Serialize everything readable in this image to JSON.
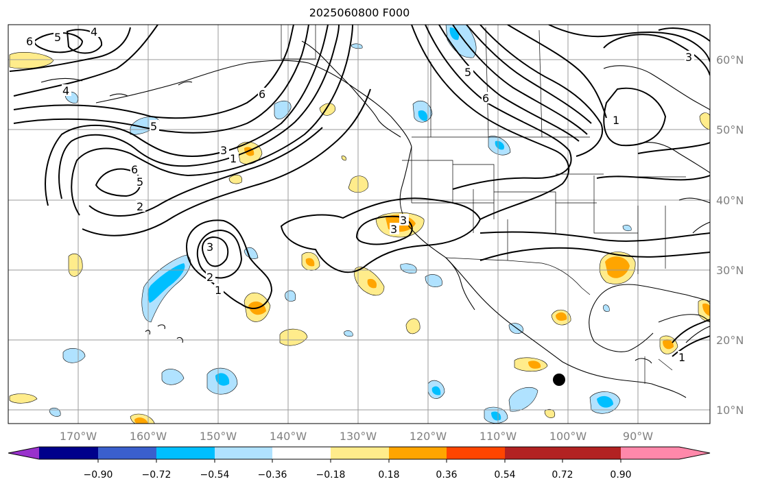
{
  "title": "2025060800 F000",
  "longitude_labels": [
    "170°W",
    "160°W",
    "150°W",
    "140°W",
    "130°W",
    "120°W",
    "110°W",
    "100°W",
    "90°W"
  ],
  "latitude_labels": [
    "60°N",
    "50°N",
    "40°N",
    "30°N",
    "20°N",
    "10°N"
  ],
  "colorbar": {
    "colors": [
      "#9932cc",
      "#00008b",
      "#3a5fcd",
      "#00bfff",
      "#b0e2ff",
      "#ffffff",
      "#ffec8b",
      "#ffa500",
      "#ff4500",
      "#b22222",
      "#ff88aa"
    ],
    "tick_labels": [
      "−0.90",
      "−0.72",
      "−0.54",
      "−0.36",
      "−0.18",
      "0.18",
      "0.36",
      "0.54",
      "0.72",
      "0.90"
    ]
  },
  "contour_labels": [
    "6",
    "5",
    "4",
    "4",
    "5",
    "6",
    "3",
    "6",
    "2",
    "5",
    "3",
    "1",
    "3",
    "2",
    "1",
    "3",
    "6",
    "5",
    "3",
    "1",
    "1"
  ],
  "marker": {
    "name": "storm-center-dot",
    "color": "#000000"
  }
}
